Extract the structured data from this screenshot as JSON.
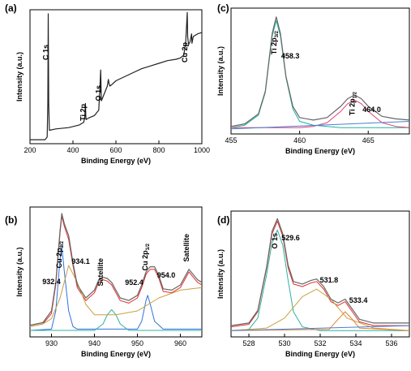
{
  "chart_data": [
    {
      "panel": "(a)",
      "type": "line",
      "xlabel": "Binding Energy (eV)",
      "ylabel": "Intensity (a.u.)",
      "xlim": [
        200,
        1000
      ],
      "xticks": [
        200,
        400,
        600,
        800,
        1000
      ],
      "annotations": [
        {
          "text": "C 1s",
          "x": 285
        },
        {
          "text": "Ti 2p",
          "x": 459
        },
        {
          "text": "O 1s",
          "x": 530
        },
        {
          "text": "Cu 2p",
          "x": 933
        }
      ],
      "series": [
        {
          "color": "#222222",
          "x": [
            200,
            270,
            280,
            283,
            285,
            287,
            290,
            320,
            380,
            430,
            450,
            455,
            458,
            460,
            462,
            470,
            500,
            520,
            525,
            529,
            530,
            532,
            535,
            545,
            560,
            565,
            568,
            572,
            580,
            600,
            640,
            680,
            720,
            760,
            800,
            840,
            880,
            900,
            915,
            920,
            925,
            932,
            934,
            938,
            945,
            952,
            954,
            960,
            980,
            1000
          ],
          "y": [
            0.03,
            0.03,
            0.05,
            0.3,
            0.97,
            0.3,
            0.1,
            0.11,
            0.12,
            0.14,
            0.16,
            0.2,
            0.3,
            0.2,
            0.18,
            0.19,
            0.21,
            0.25,
            0.4,
            0.55,
            0.5,
            0.32,
            0.33,
            0.37,
            0.43,
            0.48,
            0.45,
            0.43,
            0.44,
            0.47,
            0.5,
            0.53,
            0.56,
            0.58,
            0.6,
            0.62,
            0.63,
            0.64,
            0.66,
            0.7,
            0.76,
            0.98,
            0.8,
            0.74,
            0.76,
            0.82,
            0.75,
            0.8,
            0.82,
            0.83
          ]
        }
      ]
    },
    {
      "panel": "(c)",
      "type": "line",
      "xlabel": "Binding Energy (eV)",
      "ylabel": "Intensity (a.u.)",
      "xlim": [
        455,
        468
      ],
      "xticks": [
        455,
        460,
        465
      ],
      "annotations": [
        {
          "text": "Ti 2p",
          "sub": "3/2",
          "x": 458.3,
          "rotated": true
        },
        {
          "text": "458.3",
          "x": 458.3
        },
        {
          "text": "Ti 2p",
          "sub": "1/2",
          "x": 464.0,
          "rotated": true
        },
        {
          "text": "464.0",
          "x": 464.0
        }
      ],
      "series": [
        {
          "color": "#20b2a0",
          "x": [
            455,
            456,
            457,
            457.5,
            458,
            458.3,
            458.6,
            459,
            459.5,
            460,
            461,
            462,
            463,
            464,
            465,
            466,
            467,
            468
          ],
          "y": [
            0.05,
            0.07,
            0.15,
            0.33,
            0.78,
            0.9,
            0.78,
            0.45,
            0.2,
            0.1,
            0.07,
            0.06,
            0.05,
            0.05,
            0.05,
            0.05,
            0.05,
            0.05
          ]
        },
        {
          "color": "#e0407a",
          "x": [
            455,
            460,
            461,
            462,
            463,
            463.5,
            464,
            464.5,
            465,
            466,
            467,
            468
          ],
          "y": [
            0.05,
            0.05,
            0.06,
            0.09,
            0.18,
            0.24,
            0.27,
            0.24,
            0.18,
            0.09,
            0.06,
            0.05
          ]
        },
        {
          "color": "#4a7fd0",
          "x": [
            455,
            468
          ],
          "y": [
            0.04,
            0.1
          ]
        },
        {
          "color": "#666666",
          "x": [
            455,
            456,
            457,
            457.5,
            458,
            458.3,
            458.6,
            459,
            459.5,
            460,
            461,
            462,
            463,
            463.5,
            464,
            464.5,
            465,
            466,
            467,
            468
          ],
          "y": [
            0.06,
            0.08,
            0.16,
            0.34,
            0.8,
            0.93,
            0.8,
            0.46,
            0.22,
            0.13,
            0.11,
            0.13,
            0.22,
            0.28,
            0.31,
            0.28,
            0.22,
            0.14,
            0.12,
            0.11
          ]
        }
      ]
    },
    {
      "panel": "(b)",
      "type": "line",
      "xlabel": "Binding Energy (eV)",
      "ylabel": "Intensity (a.u.)",
      "xlim": [
        925,
        965
      ],
      "xticks": [
        930,
        940,
        950,
        960
      ],
      "annotations": [
        {
          "text": "Cu 2p",
          "sub": "3/2",
          "x": 932.4,
          "rotated": true
        },
        {
          "text": "932.4",
          "x": 932.4
        },
        {
          "text": "934.1",
          "x": 934.1
        },
        {
          "text": "Satellite",
          "x": 942,
          "rotated": true
        },
        {
          "text": "Cu 2p",
          "sub": "1/2",
          "x": 952.4,
          "rotated": true
        },
        {
          "text": "952.4",
          "x": 952.4
        },
        {
          "text": "954.0",
          "x": 954.0
        },
        {
          "text": "Satellite",
          "x": 962,
          "rotated": true
        }
      ],
      "series": [
        {
          "color": "#e03030",
          "x": [
            925,
            928,
            930,
            931,
            932,
            932.4,
            933,
            934,
            935,
            936,
            938,
            940,
            941,
            942,
            943,
            944,
            946,
            948,
            950,
            951,
            952,
            952.4,
            953,
            954,
            955,
            956,
            958,
            960,
            961,
            962,
            963,
            964,
            965
          ],
          "y": [
            0.08,
            0.1,
            0.18,
            0.4,
            0.8,
            0.93,
            0.85,
            0.75,
            0.55,
            0.38,
            0.28,
            0.34,
            0.42,
            0.44,
            0.43,
            0.4,
            0.28,
            0.26,
            0.3,
            0.38,
            0.48,
            0.5,
            0.52,
            0.52,
            0.45,
            0.35,
            0.34,
            0.38,
            0.44,
            0.5,
            0.46,
            0.42,
            0.4
          ]
        },
        {
          "color": "#3070e0",
          "x": [
            925,
            930,
            931,
            932,
            932.4,
            933,
            934,
            935,
            936,
            940,
            950,
            951,
            952,
            952.4,
            953,
            954,
            956,
            965
          ],
          "y": [
            0.05,
            0.06,
            0.2,
            0.6,
            0.7,
            0.5,
            0.2,
            0.08,
            0.06,
            0.06,
            0.06,
            0.12,
            0.28,
            0.32,
            0.25,
            0.12,
            0.06,
            0.06
          ]
        },
        {
          "color": "#30b0a0",
          "x": [
            925,
            940,
            942,
            943,
            944,
            945,
            946,
            948,
            965
          ],
          "y": [
            0.05,
            0.05,
            0.1,
            0.17,
            0.21,
            0.17,
            0.1,
            0.05,
            0.05
          ]
        },
        {
          "color": "#c8a040",
          "x": [
            925,
            928,
            930,
            932,
            934,
            936,
            938,
            940,
            945,
            950,
            955,
            960,
            965
          ],
          "y": [
            0.08,
            0.1,
            0.14,
            0.3,
            0.55,
            0.42,
            0.25,
            0.17,
            0.17,
            0.2,
            0.3,
            0.36,
            0.38
          ]
        },
        {
          "color": "#666666",
          "x": [
            925,
            928,
            930,
            931,
            932,
            932.4,
            933,
            934,
            935,
            936,
            938,
            940,
            941,
            942,
            943,
            944,
            946,
            948,
            950,
            951,
            952,
            952.4,
            953,
            954,
            955,
            956,
            958,
            960,
            961,
            962,
            963,
            964,
            965
          ],
          "y": [
            0.09,
            0.11,
            0.2,
            0.42,
            0.82,
            0.95,
            0.87,
            0.78,
            0.57,
            0.4,
            0.3,
            0.36,
            0.44,
            0.46,
            0.45,
            0.42,
            0.3,
            0.28,
            0.32,
            0.4,
            0.5,
            0.52,
            0.54,
            0.54,
            0.47,
            0.37,
            0.36,
            0.4,
            0.46,
            0.52,
            0.48,
            0.44,
            0.42
          ]
        }
      ]
    },
    {
      "panel": "(d)",
      "type": "line",
      "xlabel": "Binding Energy (eV)",
      "ylabel": "Intensity (a.u.)",
      "xlim": [
        527,
        537
      ],
      "xticks": [
        528,
        530,
        532,
        534,
        536
      ],
      "annotations": [
        {
          "text": "O 1s",
          "x": 529.6,
          "rotated": true
        },
        {
          "text": "529.6",
          "x": 529.6
        },
        {
          "text": "531.8",
          "x": 531.8
        },
        {
          "text": "533.4",
          "x": 533.4
        }
      ],
      "series": [
        {
          "color": "#e03030",
          "x": [
            527,
            528,
            528.5,
            529,
            529.3,
            529.6,
            529.9,
            530.2,
            530.5,
            531,
            531.5,
            531.8,
            532.2,
            532.6,
            533,
            533.4,
            533.8,
            534.2,
            535,
            536,
            537
          ],
          "y": [
            0.08,
            0.1,
            0.2,
            0.55,
            0.82,
            0.92,
            0.8,
            0.55,
            0.42,
            0.4,
            0.43,
            0.44,
            0.38,
            0.28,
            0.25,
            0.28,
            0.2,
            0.12,
            0.09,
            0.09,
            0.09
          ]
        },
        {
          "color": "#30b0a0",
          "x": [
            527,
            528,
            528.5,
            529,
            529.3,
            529.6,
            529.9,
            530.2,
            530.5,
            531,
            532,
            537
          ],
          "y": [
            0.05,
            0.06,
            0.15,
            0.5,
            0.75,
            0.85,
            0.73,
            0.45,
            0.2,
            0.08,
            0.05,
            0.05
          ]
        },
        {
          "color": "#c8a040",
          "x": [
            527,
            529,
            530,
            531,
            531.8,
            532.6,
            533.5,
            535,
            537
          ],
          "y": [
            0.05,
            0.07,
            0.15,
            0.32,
            0.38,
            0.3,
            0.15,
            0.07,
            0.05
          ]
        },
        {
          "color": "#e08030",
          "x": [
            527,
            532.5,
            533,
            533.4,
            533.8,
            534.2,
            537
          ],
          "y": [
            0.05,
            0.06,
            0.14,
            0.2,
            0.14,
            0.07,
            0.05
          ]
        },
        {
          "color": "#4a7fd0",
          "x": [
            527,
            537
          ],
          "y": [
            0.05,
            0.09
          ]
        },
        {
          "color": "#666666",
          "x": [
            527,
            528,
            528.5,
            529,
            529.3,
            529.6,
            529.9,
            530.2,
            530.5,
            531,
            531.5,
            531.8,
            532.2,
            532.6,
            533,
            533.4,
            533.8,
            534.2,
            535,
            536,
            537
          ],
          "y": [
            0.09,
            0.11,
            0.21,
            0.56,
            0.84,
            0.94,
            0.82,
            0.57,
            0.44,
            0.42,
            0.45,
            0.46,
            0.4,
            0.3,
            0.27,
            0.3,
            0.22,
            0.14,
            0.11,
            0.11,
            0.11
          ]
        }
      ]
    }
  ]
}
